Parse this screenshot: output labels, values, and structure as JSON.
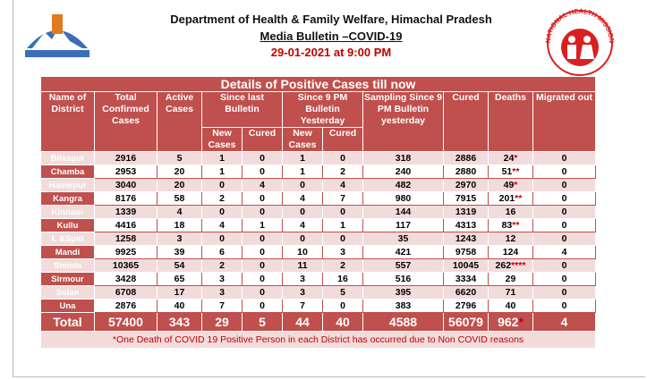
{
  "header": {
    "title": "Department of Health & Family Welfare, Himachal Pradesh",
    "subtitle": "Media Bulletin –COVID-19",
    "date": "29-01-2021 at 9:00 PM",
    "logo_text": "NATIONAL HEALTH MISSION"
  },
  "table": {
    "title": "Details of Positive Cases till now",
    "head_top": [
      "Name of District",
      "Total Confirmed Cases",
      "Active Cases",
      "Since last Bulletin",
      "Since 9 PM Bulletin Yesterday",
      "Sampling Since 9 PM Bulletin yesterday",
      "Cured",
      "Deaths",
      "Migrated out"
    ],
    "head_sub": [
      "New Cases",
      "Cured",
      "New Cases",
      "Cured"
    ],
    "rows": [
      [
        "Bilaspur",
        2916,
        5,
        1,
        0,
        1,
        0,
        318,
        2886,
        "24*",
        0
      ],
      [
        "Chamba",
        2953,
        20,
        1,
        0,
        1,
        2,
        240,
        2880,
        "51**",
        0
      ],
      [
        "Hamirpur",
        3040,
        20,
        0,
        4,
        0,
        4,
        482,
        2970,
        "49*",
        0
      ],
      [
        "Kangra",
        8176,
        58,
        2,
        0,
        4,
        7,
        980,
        7915,
        "201**",
        0
      ],
      [
        "Kinnaur",
        1339,
        4,
        0,
        0,
        0,
        0,
        144,
        1319,
        "16",
        0
      ],
      [
        "Kullu",
        4416,
        18,
        4,
        1,
        4,
        1,
        117,
        4313,
        "83**",
        0
      ],
      [
        "L &Spiti",
        1258,
        3,
        0,
        0,
        0,
        0,
        35,
        1243,
        "12",
        0
      ],
      [
        "Mandi",
        9925,
        39,
        6,
        0,
        10,
        3,
        421,
        9758,
        "124",
        4
      ],
      [
        "Shimla",
        10365,
        54,
        2,
        0,
        11,
        2,
        557,
        10045,
        "262****",
        0
      ],
      [
        "Sirmour",
        3428,
        65,
        3,
        0,
        3,
        16,
        516,
        3334,
        "29",
        0
      ],
      [
        "Solan",
        6708,
        17,
        3,
        0,
        3,
        5,
        395,
        6620,
        "71",
        0
      ],
      [
        "Una",
        2876,
        40,
        7,
        0,
        7,
        0,
        383,
        2796,
        "40",
        0
      ]
    ],
    "total": [
      "Total",
      57400,
      343,
      29,
      5,
      44,
      40,
      4588,
      56079,
      "962*",
      4
    ],
    "footnote": "*One Death of COVID 19 Positive Person in each District has occurred due to Non COVID reasons"
  }
}
